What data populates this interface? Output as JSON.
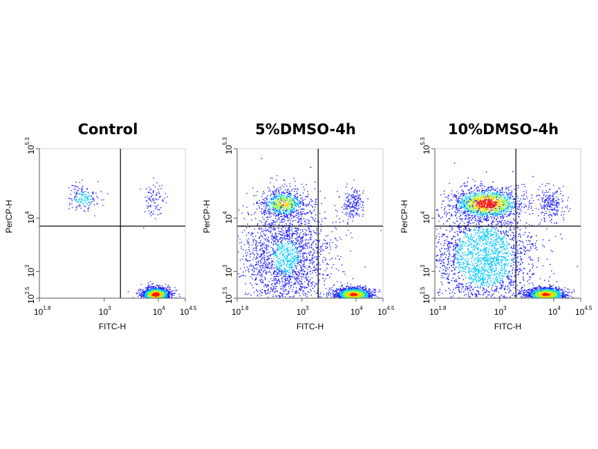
{
  "chart_data": [
    {
      "type": "scatter",
      "title": "Control",
      "xlabel": "FITC-H",
      "ylabel": "PerCP-H",
      "xscale": "log",
      "yscale": "log",
      "xlim": [
        1.8,
        4.5
      ],
      "ylim": [
        2.5,
        5.3
      ],
      "x_ticks": [
        {
          "base": "10",
          "exp": "1.8"
        },
        {
          "base": "10",
          "exp": "3"
        },
        {
          "base": "10",
          "exp": "4"
        },
        {
          "base": "10",
          "exp": "4.5"
        }
      ],
      "y_ticks": [
        {
          "base": "10",
          "exp": "2.5"
        },
        {
          "base": "10",
          "exp": "3"
        },
        {
          "base": "10",
          "exp": "4"
        },
        {
          "base": "10",
          "exp": "5.3"
        }
      ],
      "x_tick_values": [
        1.8,
        3,
        4,
        4.5
      ],
      "y_tick_values": [
        2.5,
        3,
        4,
        5.3
      ],
      "quadrant_gates": {
        "x": 3.3,
        "y": 3.85
      },
      "populations": [
        {
          "name": "FITC+ PerCP-",
          "x_center": 3.95,
          "y_center": 2.5,
          "relative_density": "very high"
        },
        {
          "name": "FITC- PerCP+",
          "x_center": 2.6,
          "y_center": 4.3,
          "relative_density": "low"
        },
        {
          "name": "FITC+ PerCP+",
          "x_center": 3.9,
          "y_center": 4.3,
          "relative_density": "very low"
        }
      ],
      "grid": false,
      "legend": "none"
    },
    {
      "type": "scatter",
      "title": "5%DMSO-4h",
      "xlabel": "FITC-H",
      "ylabel": "PerCP-H",
      "xscale": "log",
      "yscale": "log",
      "xlim": [
        1.8,
        4.5
      ],
      "ylim": [
        2.5,
        5.3
      ],
      "x_ticks": [
        {
          "base": "10",
          "exp": "1.8"
        },
        {
          "base": "10",
          "exp": "3"
        },
        {
          "base": "10",
          "exp": "4"
        },
        {
          "base": "10",
          "exp": "4.5"
        }
      ],
      "y_ticks": [
        {
          "base": "10",
          "exp": "2.5"
        },
        {
          "base": "10",
          "exp": "3"
        },
        {
          "base": "10",
          "exp": "4"
        },
        {
          "base": "10",
          "exp": "5.3"
        }
      ],
      "x_tick_values": [
        1.8,
        3,
        4,
        4.5
      ],
      "y_tick_values": [
        2.5,
        3,
        4,
        5.3
      ],
      "quadrant_gates": {
        "x": 3.3,
        "y": 3.85
      },
      "populations": [
        {
          "name": "FITC+ PerCP-",
          "x_center": 3.95,
          "y_center": 2.5,
          "relative_density": "high"
        },
        {
          "name": "FITC- PerCP+",
          "x_center": 2.65,
          "y_center": 4.2,
          "relative_density": "high"
        },
        {
          "name": "FITC- PerCP- spread",
          "x_center": 2.7,
          "y_center": 3.2,
          "relative_density": "medium"
        },
        {
          "name": "FITC+ PerCP+",
          "x_center": 3.95,
          "y_center": 4.2,
          "relative_density": "low"
        }
      ],
      "grid": false,
      "legend": "none"
    },
    {
      "type": "scatter",
      "title": "10%DMSO-4h",
      "xlabel": "FITC-H",
      "ylabel": "PerCP-H",
      "xscale": "log",
      "yscale": "log",
      "xlim": [
        1.8,
        4.5
      ],
      "ylim": [
        2.5,
        5.3
      ],
      "x_ticks": [
        {
          "base": "10",
          "exp": "1.8"
        },
        {
          "base": "10",
          "exp": "3"
        },
        {
          "base": "10",
          "exp": "4"
        },
        {
          "base": "10",
          "exp": "4.5"
        }
      ],
      "y_ticks": [
        {
          "base": "10",
          "exp": "2.5"
        },
        {
          "base": "10",
          "exp": "3"
        },
        {
          "base": "10",
          "exp": "4"
        },
        {
          "base": "10",
          "exp": "5.3"
        }
      ],
      "x_tick_values": [
        1.8,
        3,
        4,
        4.5
      ],
      "y_tick_values": [
        2.5,
        3,
        4,
        5.3
      ],
      "quadrant_gates": {
        "x": 3.3,
        "y": 3.85
      },
      "populations": [
        {
          "name": "FITC+ PerCP-",
          "x_center": 3.85,
          "y_center": 2.5,
          "relative_density": "high"
        },
        {
          "name": "FITC- PerCP+",
          "x_center": 2.75,
          "y_center": 4.2,
          "relative_density": "very high"
        },
        {
          "name": "FITC- PerCP- spread",
          "x_center": 2.7,
          "y_center": 3.2,
          "relative_density": "high"
        },
        {
          "name": "FITC+ PerCP+",
          "x_center": 3.95,
          "y_center": 4.2,
          "relative_density": "low"
        }
      ],
      "grid": false,
      "legend": "none"
    }
  ],
  "colors": {
    "density_low": "#1a1aff",
    "density_mid": "#00c8ff",
    "density_midhigh": "#7fff3a",
    "density_high": "#ffd200",
    "density_peak": "#ff1a00",
    "gate_line": "#000000",
    "axis": "#555555"
  }
}
